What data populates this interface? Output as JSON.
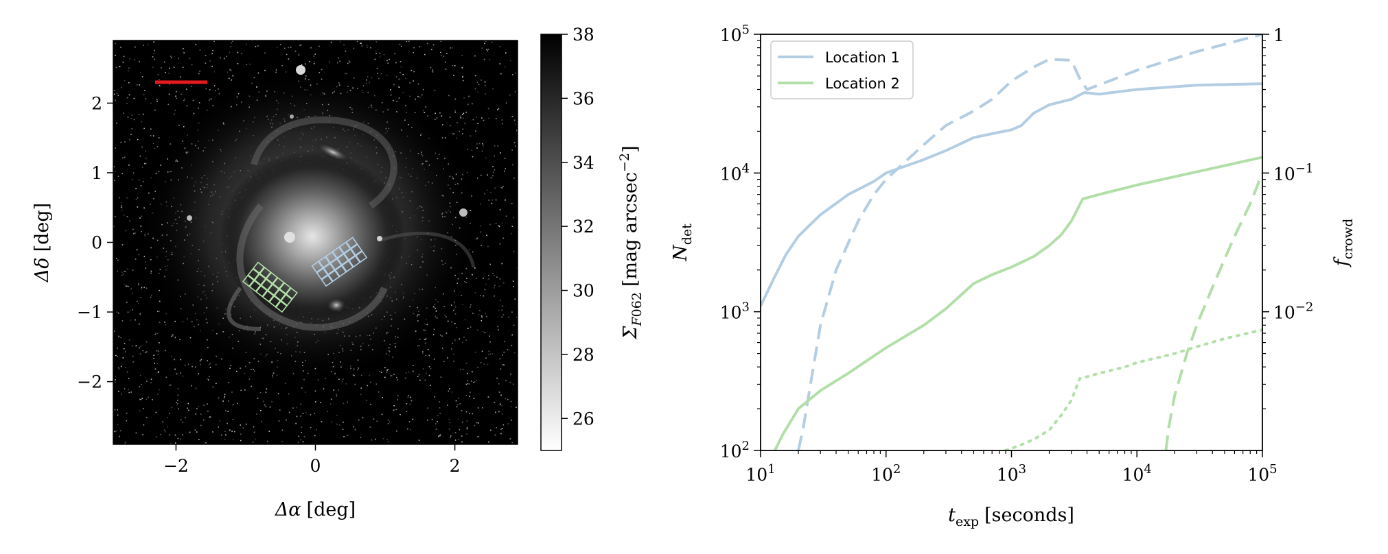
{
  "colors": {
    "location1": "#b3cde3",
    "location2": "#b2dfa8",
    "scale_bar": "#e41a1c",
    "image_background": "#000000"
  },
  "chart_data": [
    {
      "type": "heatmap",
      "xlabel": "Δα [deg]",
      "ylabel": "Δδ [deg]",
      "xlim": [
        -2.9,
        2.9
      ],
      "ylim": [
        -2.9,
        2.9
      ],
      "xticks": [
        -2,
        0,
        2
      ],
      "xticklabels": [
        "−2",
        "0",
        "2"
      ],
      "yticks": [
        -2,
        -1,
        0,
        1,
        2
      ],
      "yticklabels": [
        "−2",
        "−1",
        "0",
        "1",
        "2"
      ],
      "colorbar": {
        "label": "Σ_F062 [mag arcsec^−2]",
        "range": [
          25,
          38
        ],
        "colormap": "gray_r",
        "ticks": [
          26,
          28,
          30,
          32,
          34,
          36,
          38
        ],
        "ticklabels": [
          "26",
          "28",
          "30",
          "32",
          "34",
          "36",
          "38"
        ]
      },
      "scale_bar": {
        "x": [
          -2.3,
          -1.55
        ],
        "y": 2.3
      },
      "footprints": [
        {
          "name": "Location 1",
          "center": [
            0.35,
            -0.28
          ],
          "angle_deg": 35,
          "rows": 3,
          "cols": 6,
          "cell_deg": 0.12
        },
        {
          "name": "Location 2",
          "center": [
            -0.65,
            -0.65
          ],
          "angle_deg": -38,
          "rows": 3,
          "cols": 6,
          "cell_deg": 0.12
        }
      ]
    },
    {
      "type": "line",
      "xlabel": "t_exp [seconds]",
      "ylabel_left": "N_det",
      "ylabel_right": "f_crowd",
      "xscale": "log",
      "yscale": "log",
      "xlim": [
        10,
        100000
      ],
      "ylim_left": [
        100,
        100000
      ],
      "ylim_right": [
        0.001,
        1
      ],
      "xticks": [
        10,
        100,
        1000,
        10000,
        100000
      ],
      "xticklabels": [
        {
          "base": "10",
          "exp": "1"
        },
        {
          "base": "10",
          "exp": "2"
        },
        {
          "base": "10",
          "exp": "3"
        },
        {
          "base": "10",
          "exp": "4"
        },
        {
          "base": "10",
          "exp": "5"
        }
      ],
      "yticks_left": [
        100,
        1000,
        10000,
        100000
      ],
      "yticklabels_left": [
        {
          "base": "10",
          "exp": "2"
        },
        {
          "base": "10",
          "exp": "3"
        },
        {
          "base": "10",
          "exp": "4"
        },
        {
          "base": "10",
          "exp": "5"
        }
      ],
      "yticks_right": [
        1,
        0.1,
        0.01
      ],
      "yticklabels_right": [
        {
          "base": "1",
          "exp": ""
        },
        {
          "base": "10",
          "exp": "−1"
        },
        {
          "base": "10",
          "exp": "−2"
        }
      ],
      "legend": {
        "placement": "top-left",
        "entries": [
          "Location 1",
          "Location 2"
        ]
      },
      "series": [
        {
          "name": "Location 1",
          "style": "solid",
          "axis": "left",
          "x": [
            10,
            13,
            16,
            20,
            30,
            50,
            80,
            100,
            200,
            300,
            500,
            700,
            1000,
            1200,
            1500,
            2000,
            3000,
            3800,
            5000,
            10000,
            30000,
            100000
          ],
          "y": [
            1100,
            1800,
            2600,
            3500,
            5000,
            7000,
            8700,
            10000,
            12500,
            14500,
            18000,
            19200,
            20500,
            22000,
            27000,
            31000,
            34000,
            38000,
            37000,
            40000,
            43000,
            44000
          ]
        },
        {
          "name": "Location 1",
          "style": "dashed",
          "axis": "right",
          "x": [
            20,
            22,
            25,
            30,
            40,
            60,
            80,
            100,
            200,
            300,
            500,
            700,
            1000,
            1500,
            2000,
            3000,
            3500,
            4000,
            6000,
            10000,
            30000,
            100000
          ],
          "y": [
            0.001,
            0.0015,
            0.003,
            0.008,
            0.02,
            0.045,
            0.07,
            0.09,
            0.16,
            0.22,
            0.28,
            0.34,
            0.46,
            0.58,
            0.66,
            0.65,
            0.48,
            0.4,
            0.46,
            0.55,
            0.75,
            1.0
          ]
        },
        {
          "name": "Location 2",
          "style": "solid",
          "axis": "left",
          "x": [
            13,
            15,
            20,
            30,
            50,
            100,
            200,
            300,
            500,
            700,
            1000,
            1500,
            2000,
            2500,
            3000,
            3700,
            5000,
            10000,
            30000,
            100000
          ],
          "y": [
            100,
            130,
            200,
            270,
            360,
            550,
            800,
            1050,
            1600,
            1850,
            2100,
            2500,
            3000,
            3600,
            4500,
            6500,
            7000,
            8200,
            10200,
            13000
          ]
        },
        {
          "name": "Location 2",
          "style": "dashed",
          "axis": "right",
          "x": [
            17000,
            18000,
            20000,
            25000,
            30000,
            40000,
            50000,
            60000,
            80000,
            100000
          ],
          "y": [
            0.001,
            0.0015,
            0.0025,
            0.005,
            0.008,
            0.015,
            0.024,
            0.035,
            0.06,
            0.1
          ]
        },
        {
          "name": "Location 2",
          "style": "dotted",
          "axis": "left",
          "x": [
            900,
            1200,
            1500,
            2000,
            2500,
            3000,
            3500,
            4000,
            5000,
            8000,
            10000,
            20000,
            30000,
            50000,
            100000
          ],
          "y": [
            100,
            110,
            120,
            140,
            180,
            230,
            330,
            340,
            360,
            400,
            430,
            500,
            560,
            640,
            740
          ]
        }
      ]
    }
  ]
}
